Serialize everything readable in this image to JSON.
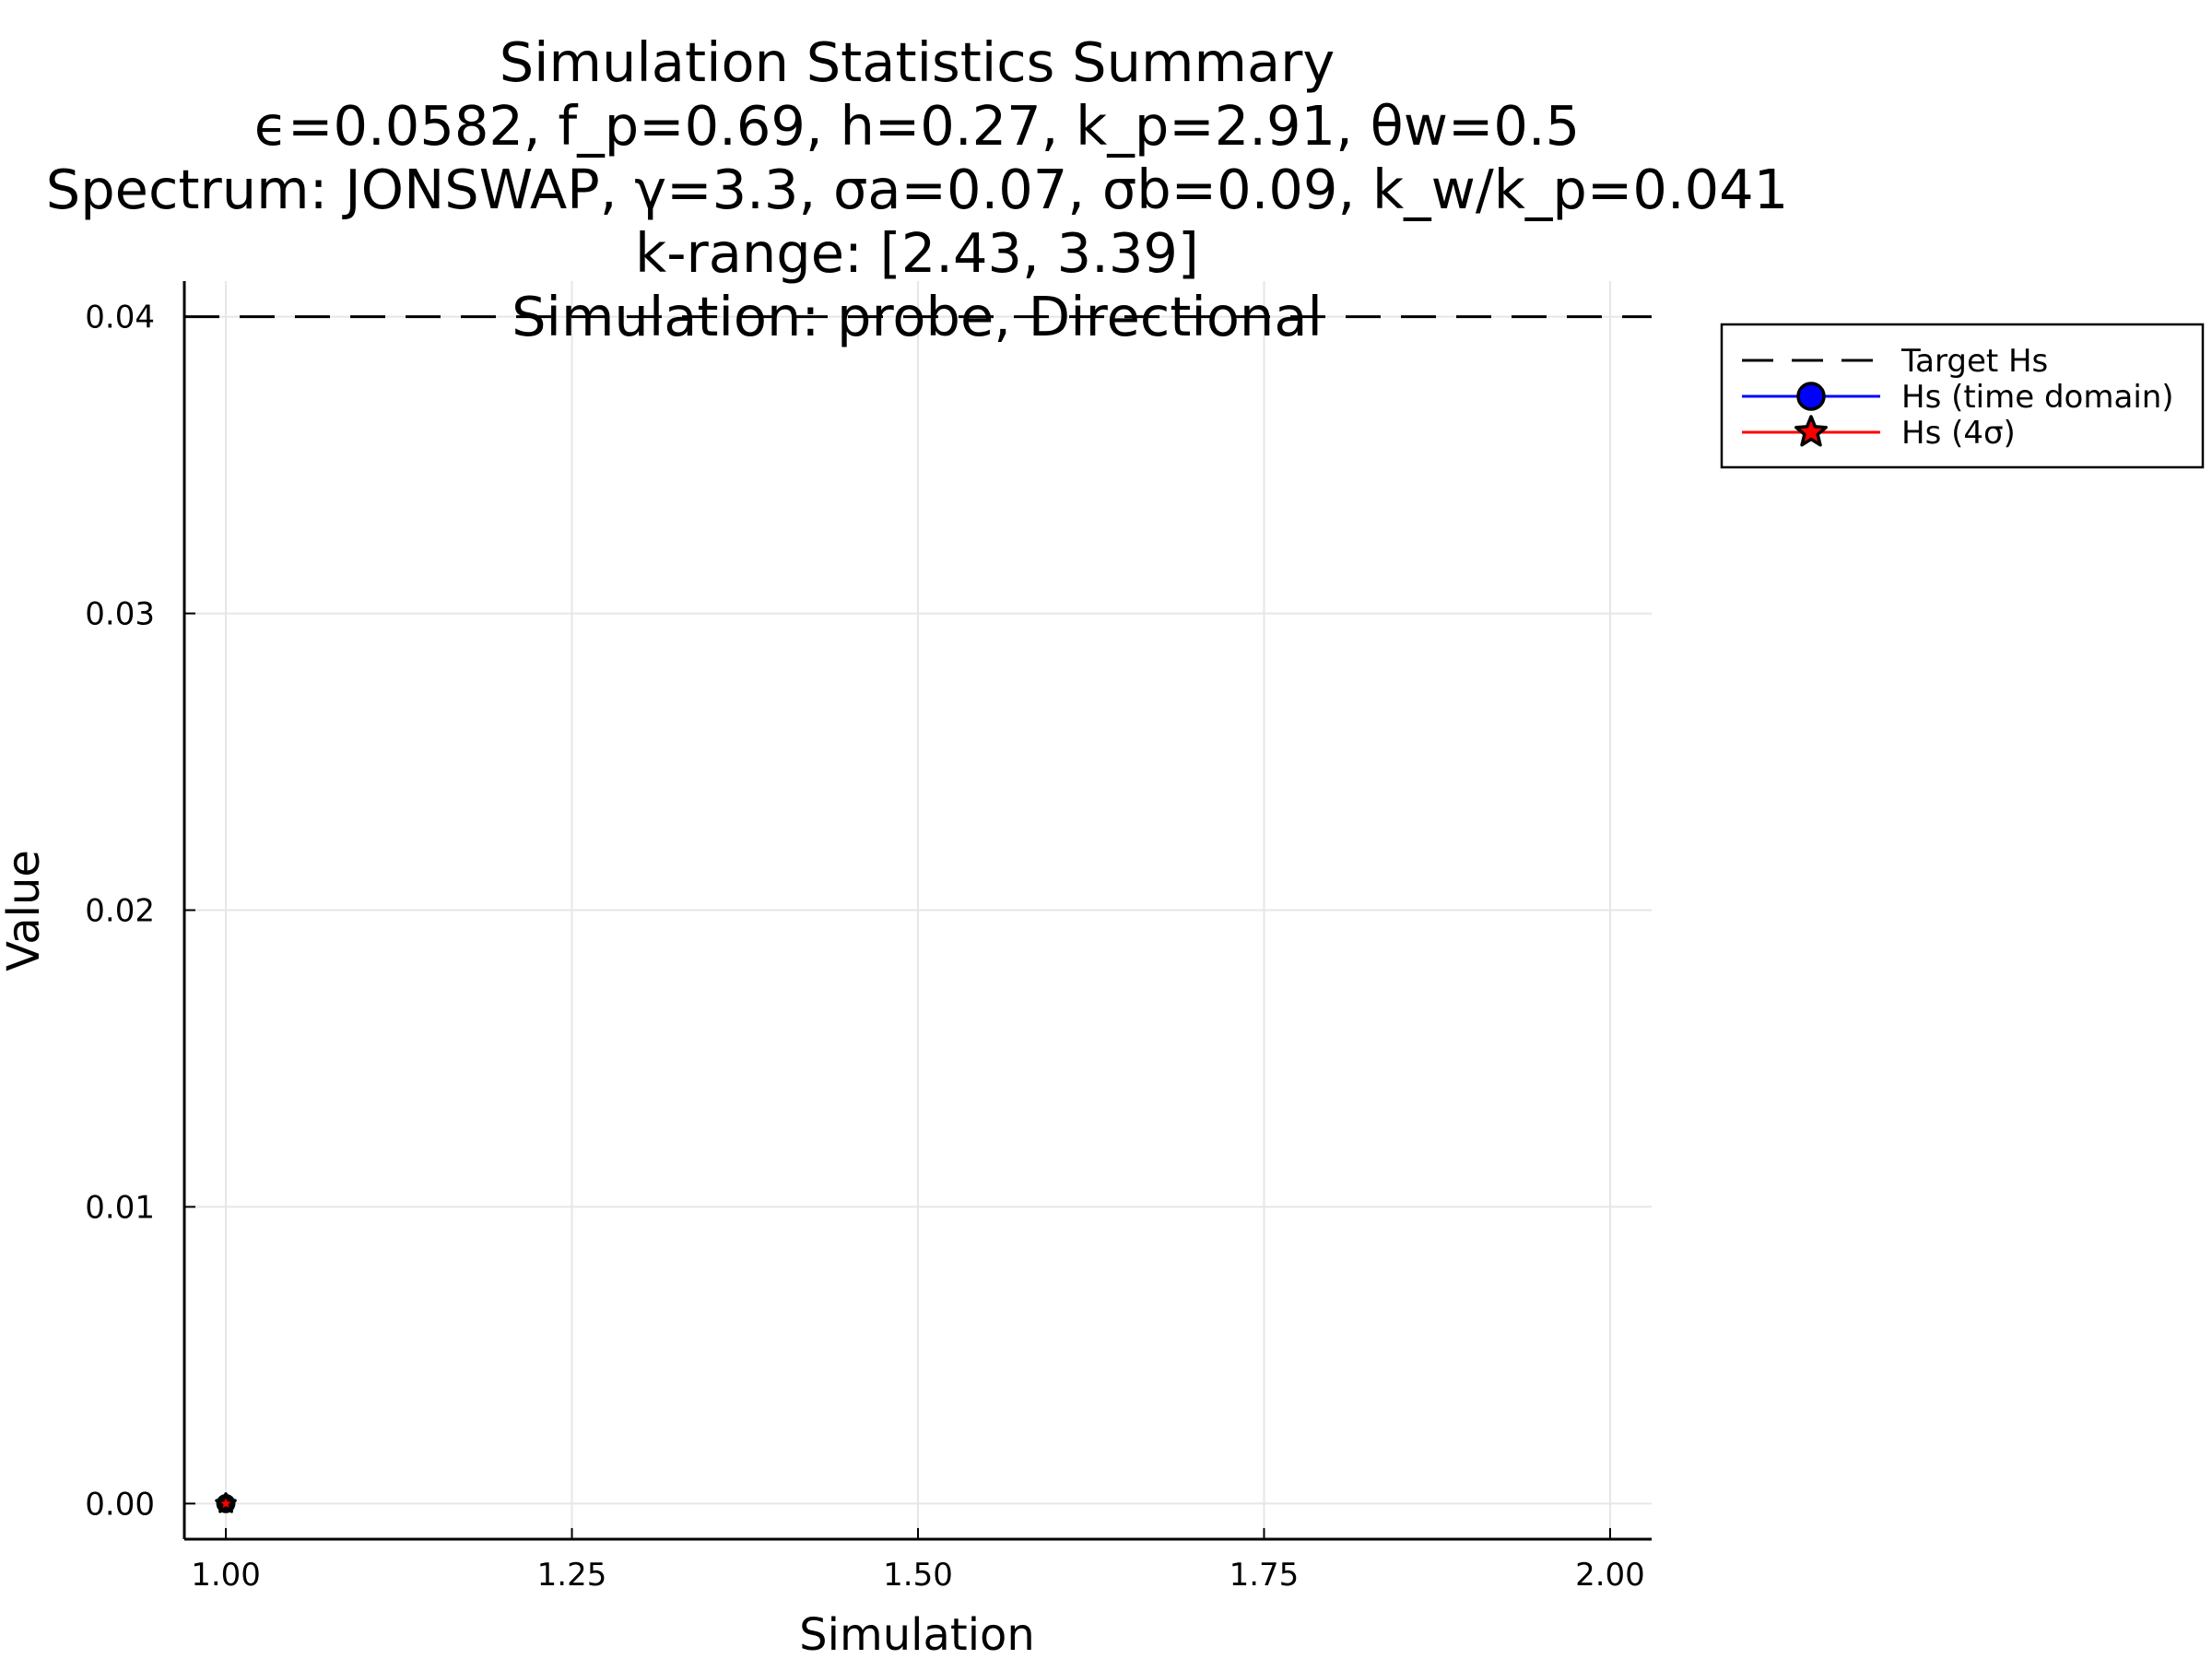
{
  "chart_data": {
    "type": "scatter",
    "title_lines": [
      "Simulation Statistics Summary",
      "ϵ=0.0582, f_p=0.69, h=0.27, k_p=2.91, θw=0.5",
      "Spectrum: JONSWAP, γ=3.3, σa=0.07, σb=0.09, k_w/k_p=0.041",
      "k-range: [2.43, 3.39]",
      "Simulation: probe, Directional"
    ],
    "xlabel": "Simulation",
    "ylabel": "Value",
    "xlim": [
      0.97,
      2.03
    ],
    "ylim": [
      -0.0012,
      0.0412
    ],
    "xticks": [
      {
        "value": 1.0,
        "label": "1.00"
      },
      {
        "value": 1.25,
        "label": "1.25"
      },
      {
        "value": 1.5,
        "label": "1.50"
      },
      {
        "value": 1.75,
        "label": "1.75"
      },
      {
        "value": 2.0,
        "label": "2.00"
      }
    ],
    "yticks": [
      {
        "value": 0.0,
        "label": "0.00"
      },
      {
        "value": 0.01,
        "label": "0.01"
      },
      {
        "value": 0.02,
        "label": "0.02"
      },
      {
        "value": 0.03,
        "label": "0.03"
      },
      {
        "value": 0.04,
        "label": "0.04"
      }
    ],
    "grid": true,
    "legend_position": "outside-top-right",
    "reference_lines": [
      {
        "name": "Target Hs",
        "y": 0.04,
        "color": "#000000",
        "style": "dashed"
      }
    ],
    "series": [
      {
        "name": "Hs (time domain)",
        "x": [
          1
        ],
        "y": [
          0.0
        ],
        "line_color": "#0000ff",
        "marker": "circle",
        "marker_color": "#0000ff"
      },
      {
        "name": "Hs (4σ)",
        "x": [
          1
        ],
        "y": [
          0.0
        ],
        "line_color": "#ff0000",
        "marker": "star",
        "marker_color": "#ff0000"
      }
    ]
  }
}
